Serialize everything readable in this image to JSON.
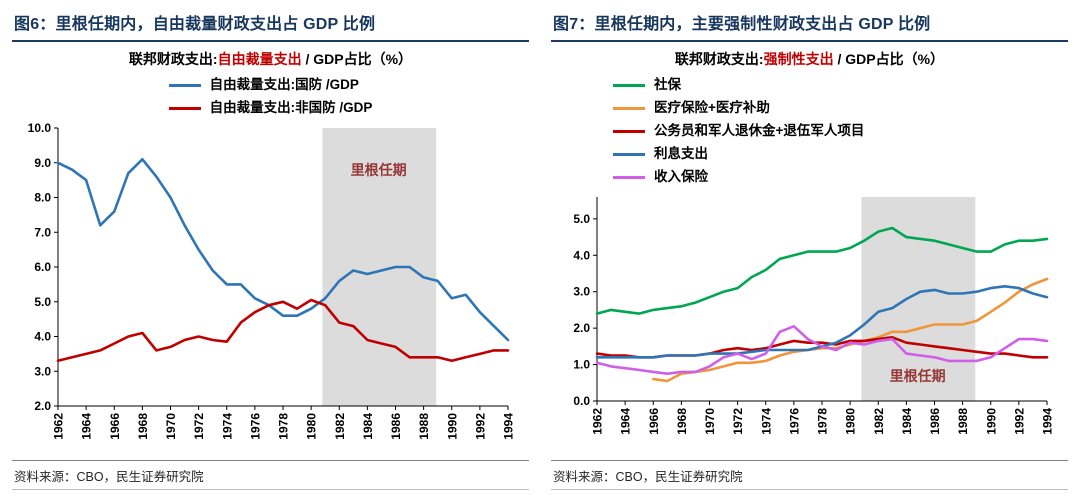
{
  "panels": [
    {
      "title": "图6：里根任期内，自由裁量财政支出占 GDP 比例",
      "subtitle": {
        "prefix": "联邦财政支出:",
        "highlight": "自由裁量支出",
        "suffix": " / GDP占比（%）"
      },
      "source": "资料来源：CBO，民生证券研究院"
    },
    {
      "title": "图7：里根任期内，主要强制性财政支出占 GDP 比例",
      "subtitle": {
        "prefix": "联邦财政支出:",
        "highlight": "强制性支出",
        "suffix": " / GDP占比（%）"
      },
      "source": "资料来源：CBO，民生证券研究院"
    }
  ],
  "colors": {
    "title_navy": "#17375e",
    "highlight_red": "#c00000",
    "band_gray": "#dcdcdc",
    "annotation_red": "#953735"
  },
  "chart_data": [
    {
      "type": "line",
      "title": "图6：里根任期内，自由裁量财政支出占 GDP 比例",
      "subtitle": "联邦财政支出:自由裁量支出 / GDP占比（%）",
      "x": [
        1962,
        1963,
        1964,
        1965,
        1966,
        1967,
        1968,
        1969,
        1970,
        1971,
        1972,
        1973,
        1974,
        1975,
        1976,
        1977,
        1978,
        1979,
        1980,
        1981,
        1982,
        1983,
        1984,
        1985,
        1986,
        1987,
        1988,
        1989,
        1990,
        1991,
        1992,
        1993,
        1994
      ],
      "xtick_step": 2,
      "ylim": [
        2.0,
        10.0
      ],
      "yticks": [
        2,
        3,
        4,
        5,
        6,
        7,
        8,
        9,
        10
      ],
      "grid": false,
      "legend_position": "top-center",
      "series": [
        {
          "name": "自由裁量支出:国防 /GDP",
          "color": "#2e75b6",
          "values": [
            9.0,
            8.8,
            8.5,
            7.2,
            7.6,
            8.7,
            9.1,
            8.6,
            8.0,
            7.2,
            6.5,
            5.9,
            5.5,
            5.5,
            5.1,
            4.9,
            4.6,
            4.6,
            4.8,
            5.1,
            5.6,
            5.9,
            5.8,
            5.9,
            6.0,
            6.0,
            5.7,
            5.6,
            5.1,
            5.2,
            4.7,
            4.3,
            3.9
          ]
        },
        {
          "name": "自由裁量支出:非国防 /GDP",
          "color": "#c00000",
          "values": [
            3.3,
            3.4,
            3.5,
            3.6,
            3.8,
            4.0,
            4.1,
            3.6,
            3.7,
            3.9,
            4.0,
            3.9,
            3.85,
            4.4,
            4.7,
            4.9,
            5.0,
            4.8,
            5.05,
            4.9,
            4.4,
            4.3,
            3.9,
            3.8,
            3.7,
            3.4,
            3.4,
            3.4,
            3.3,
            3.4,
            3.5,
            3.6,
            3.6
          ]
        }
      ],
      "shaded_region": {
        "x0": 1980.8,
        "x1": 1988.9,
        "label": "里根任期",
        "label_x": 1984.8,
        "label_y": 8.65
      }
    },
    {
      "type": "line",
      "title": "图7：里根任期内，主要强制性财政支出占 GDP 比例",
      "subtitle": "联邦财政支出:强制性支出 / GDP占比（%）",
      "x": [
        1962,
        1963,
        1964,
        1965,
        1966,
        1967,
        1968,
        1969,
        1970,
        1971,
        1972,
        1973,
        1974,
        1975,
        1976,
        1977,
        1978,
        1979,
        1980,
        1981,
        1982,
        1983,
        1984,
        1985,
        1986,
        1987,
        1988,
        1989,
        1990,
        1991,
        1992,
        1993,
        1994
      ],
      "xtick_step": 2,
      "ylim": [
        0.0,
        5.6
      ],
      "yticks": [
        0,
        1,
        2,
        3,
        4,
        5
      ],
      "grid": false,
      "legend_position": "top-left",
      "series": [
        {
          "name": "社保",
          "color": "#00a651",
          "values": [
            2.4,
            2.5,
            2.45,
            2.4,
            2.5,
            2.55,
            2.6,
            2.7,
            2.85,
            3.0,
            3.1,
            3.4,
            3.6,
            3.9,
            4.0,
            4.1,
            4.1,
            4.1,
            4.2,
            4.4,
            4.65,
            4.75,
            4.5,
            4.45,
            4.4,
            4.3,
            4.2,
            4.1,
            4.1,
            4.3,
            4.4,
            4.4,
            4.45
          ]
        },
        {
          "name": "医疗保险+医疗补助",
          "color": "#f0953a",
          "values": [
            null,
            null,
            null,
            null,
            0.6,
            0.55,
            0.75,
            0.8,
            0.85,
            0.95,
            1.05,
            1.05,
            1.1,
            1.25,
            1.35,
            1.4,
            1.45,
            1.45,
            1.55,
            1.65,
            1.75,
            1.9,
            1.9,
            2.0,
            2.1,
            2.1,
            2.1,
            2.2,
            2.45,
            2.7,
            3.0,
            3.2,
            3.35
          ]
        },
        {
          "name": "公务员和军人退休金+退伍军人项目",
          "color": "#c00000",
          "values": [
            1.3,
            1.25,
            1.25,
            1.2,
            1.2,
            1.25,
            1.25,
            1.25,
            1.3,
            1.4,
            1.45,
            1.4,
            1.45,
            1.55,
            1.65,
            1.6,
            1.6,
            1.55,
            1.65,
            1.65,
            1.7,
            1.75,
            1.6,
            1.55,
            1.5,
            1.45,
            1.4,
            1.35,
            1.3,
            1.3,
            1.25,
            1.2,
            1.2
          ]
        },
        {
          "name": "利息支出",
          "color": "#2e75b6",
          "values": [
            1.2,
            1.2,
            1.2,
            1.2,
            1.2,
            1.25,
            1.25,
            1.25,
            1.3,
            1.3,
            1.3,
            1.35,
            1.4,
            1.4,
            1.4,
            1.4,
            1.5,
            1.6,
            1.8,
            2.1,
            2.45,
            2.55,
            2.8,
            3.0,
            3.05,
            2.95,
            2.95,
            3.0,
            3.1,
            3.15,
            3.1,
            2.95,
            2.85
          ]
        },
        {
          "name": "收入保险",
          "color": "#cf5fe8",
          "values": [
            1.05,
            0.95,
            0.9,
            0.85,
            0.8,
            0.75,
            0.8,
            0.8,
            0.95,
            1.2,
            1.3,
            1.15,
            1.3,
            1.9,
            2.05,
            1.7,
            1.5,
            1.4,
            1.6,
            1.55,
            1.65,
            1.7,
            1.3,
            1.25,
            1.2,
            1.1,
            1.1,
            1.1,
            1.2,
            1.45,
            1.7,
            1.7,
            1.65
          ]
        }
      ],
      "shaded_region": {
        "x0": 1980.8,
        "x1": 1988.9,
        "label": "里根任期",
        "label_x": 1984.8,
        "label_y": 0.55
      }
    }
  ]
}
